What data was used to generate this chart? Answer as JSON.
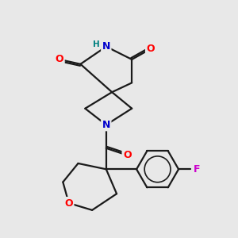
{
  "bg_color": "#e8e8e8",
  "atom_colors": {
    "N": "#0000cc",
    "O": "#ff0000",
    "F": "#cc00cc",
    "H": "#008080",
    "C": "#000000"
  },
  "bond_color": "#1a1a1a",
  "bond_width": 1.6,
  "figsize": [
    3.0,
    3.0
  ],
  "dpi": 100
}
